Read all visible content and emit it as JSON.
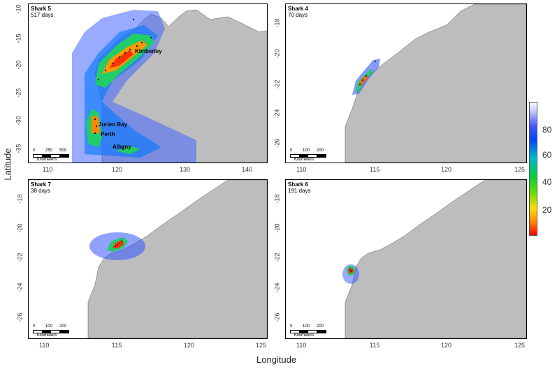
{
  "axis": {
    "x_title": "Longitude",
    "y_title": "Latitude"
  },
  "panels": [
    {
      "id": "shark5",
      "title": "Shark 5",
      "days": "517 days",
      "x_ticks": [
        "110",
        "120",
        "130",
        "140"
      ],
      "y_ticks": [
        "-10",
        "-15",
        "-20",
        "-25",
        "-30",
        "-35"
      ],
      "scale_labels": [
        "0",
        "250",
        "500"
      ],
      "cities": [
        "Kimberley",
        "Jurien Bay",
        "Perth",
        "Albany"
      ]
    },
    {
      "id": "shark4",
      "title": "Shark 4",
      "days": "70 days",
      "x_ticks": [
        "110",
        "115",
        "120",
        "125"
      ],
      "y_ticks": [
        "-18",
        "-20",
        "-22",
        "-24",
        "-26"
      ],
      "scale_labels": [
        "0",
        "100",
        "200"
      ]
    },
    {
      "id": "shark7",
      "title": "Shark 7",
      "days": "38 days",
      "x_ticks": [
        "110",
        "115",
        "120",
        "125"
      ],
      "y_ticks": [
        "-18",
        "-20",
        "-22",
        "-24",
        "-26"
      ],
      "scale_labels": [
        "0",
        "100",
        "200"
      ]
    },
    {
      "id": "shark6",
      "title": "Shark 6",
      "days": "191 days",
      "x_ticks": [
        "110",
        "115",
        "120",
        "125"
      ],
      "y_ticks": [
        "-18",
        "-20",
        "-22",
        "-24",
        "-26"
      ],
      "scale_labels": [
        "0",
        "100",
        "200"
      ]
    }
  ],
  "scale_unit": "Kilometers",
  "legend": {
    "ticks": [
      "80",
      "60",
      "40",
      "20"
    ],
    "colors": [
      "#ff0000",
      "#ff8800",
      "#ffdd00",
      "#66dd00",
      "#00cc44",
      "#00bbcc",
      "#0044ff",
      "#ccccff",
      "#ffffff"
    ]
  },
  "colors": {
    "land": "#bdbdbd",
    "ocean": "#ffffff"
  }
}
